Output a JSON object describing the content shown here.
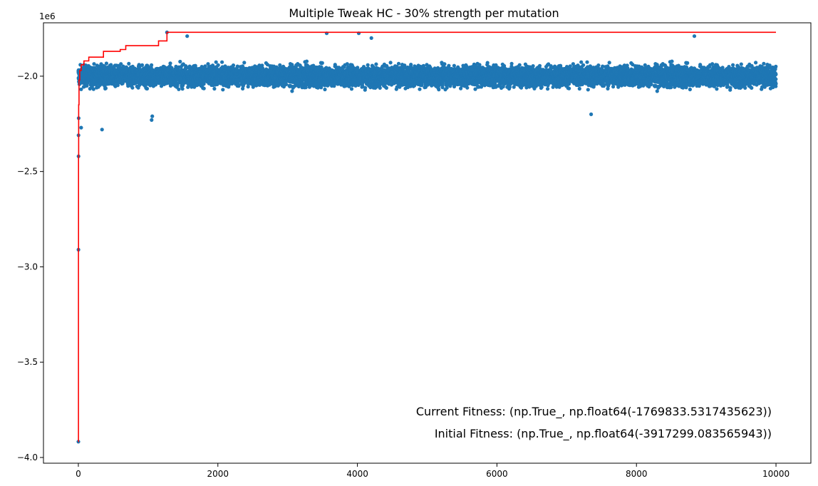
{
  "chart_data": {
    "type": "scatter",
    "title": "Multiple Tweak HC - 30% strength per mutation",
    "xlabel": "",
    "ylabel": "",
    "y_offset_label": "1e6",
    "xlim": [
      -500,
      10500
    ],
    "ylim": [
      -4.03,
      -1.72
    ],
    "x_ticks": [
      0,
      2000,
      4000,
      6000,
      8000,
      10000
    ],
    "x_tick_labels": [
      "0",
      "2000",
      "4000",
      "6000",
      "8000",
      "10000"
    ],
    "y_ticks": [
      -4.0,
      -3.5,
      -3.0,
      -2.5,
      -2.0
    ],
    "y_tick_labels": [
      "−4.0",
      "−3.5",
      "−3.0",
      "−2.5",
      "−2.0"
    ],
    "grid": false,
    "colors": {
      "scatter": "#1f77b4",
      "best_line": "#ff0000"
    },
    "scatter_band": {
      "x_range": [
        0,
        10000
      ],
      "center": -2.0,
      "spread_low": -2.16,
      "spread_high": -1.86,
      "approx_points": 10000
    },
    "scatter_outliers": [
      {
        "x": 0,
        "y": -3.917
      },
      {
        "x": 1,
        "y": -2.91
      },
      {
        "x": 2,
        "y": -2.42
      },
      {
        "x": 3,
        "y": -2.31
      },
      {
        "x": 5,
        "y": -2.22
      },
      {
        "x": 40,
        "y": -2.27
      },
      {
        "x": 340,
        "y": -2.28
      },
      {
        "x": 1050,
        "y": -2.23
      },
      {
        "x": 1060,
        "y": -2.21
      },
      {
        "x": 7350,
        "y": -2.2
      },
      {
        "x": 1270,
        "y": -1.77
      },
      {
        "x": 3560,
        "y": -1.775
      },
      {
        "x": 4020,
        "y": -1.775
      },
      {
        "x": 8830,
        "y": -1.79
      },
      {
        "x": 1560,
        "y": -1.79
      },
      {
        "x": 4200,
        "y": -1.8
      }
    ],
    "best_fitness_line": {
      "name": "best",
      "x": [
        0,
        1,
        2,
        5,
        10,
        20,
        40,
        80,
        150,
        360,
        600,
        680,
        1150,
        1270,
        10000
      ],
      "y": [
        -3.917,
        -2.91,
        -2.42,
        -2.15,
        -2.02,
        -1.97,
        -1.94,
        -1.92,
        -1.9,
        -1.87,
        -1.86,
        -1.84,
        -1.815,
        -1.7698,
        -1.7698
      ]
    },
    "annotations": [
      "Current Fitness: (np.True_, np.float64(-1769833.5317435623))",
      "Initial Fitness: (np.True_, np.float64(-3917299.083565943))"
    ]
  }
}
